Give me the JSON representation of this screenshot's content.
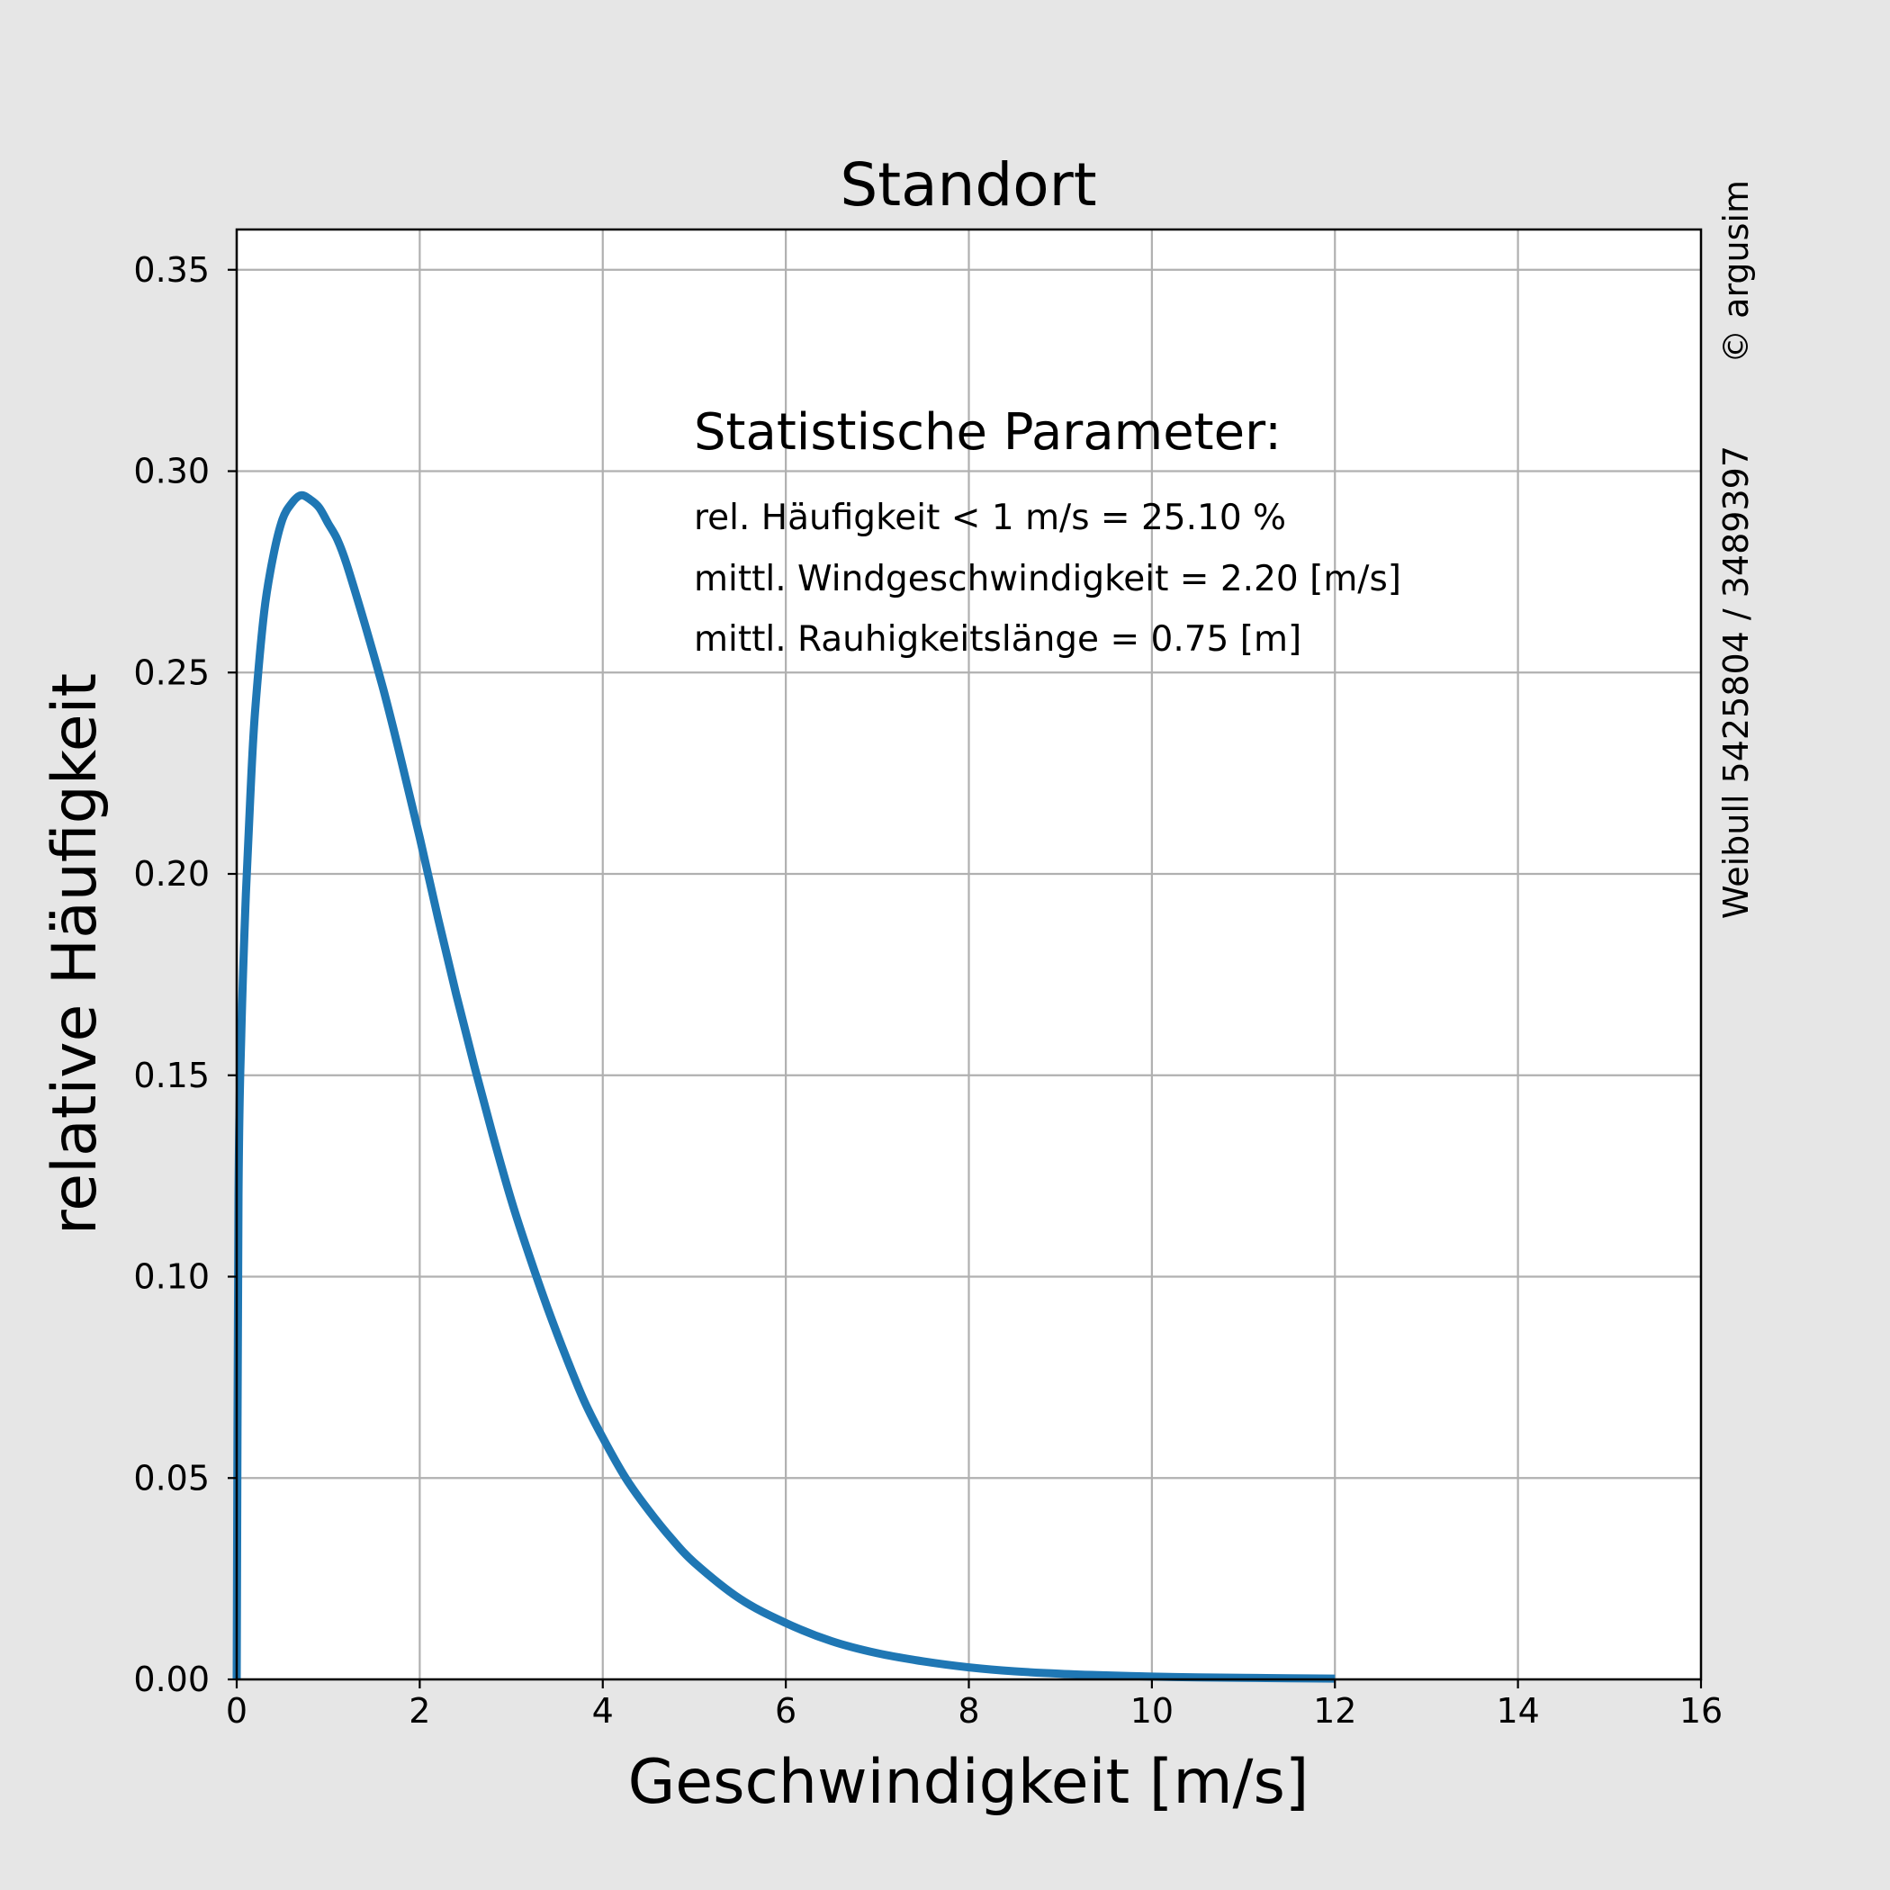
{
  "colors": {
    "background": "#e6e6e6",
    "plot_background": "#ffffff",
    "curve": "#1f77b4",
    "grid": "#b0b0b0"
  },
  "side_text": {
    "copyright": "© argusim",
    "weibull_info": "Weibull 5425804 / 3489397"
  },
  "annotation": {
    "heading": "Statistische Parameter:",
    "lines": [
      "rel. Häufigkeit < 1 m/s = 25.10 %",
      "mittl. Windgeschwindigkeit = 2.20 [m/s]",
      "mittl. Rauhigkeitslänge = 0.75 [m]"
    ]
  },
  "chart_data": {
    "type": "line",
    "title": "Standort",
    "xlabel": "Geschwindigkeit [m/s]",
    "ylabel": "relative Häufigkeit",
    "xlim": [
      0,
      16
    ],
    "ylim": [
      0,
      0.36
    ],
    "xticks": [
      0,
      2,
      4,
      6,
      8,
      10,
      12,
      14,
      16
    ],
    "xtick_labels": [
      "0",
      "2",
      "4",
      "6",
      "8",
      "10",
      "12",
      "14",
      "16"
    ],
    "yticks": [
      0,
      0.05,
      0.1,
      0.15,
      0.2,
      0.25,
      0.3,
      0.35
    ],
    "ytick_labels": [
      "0.00",
      "0.05",
      "0.10",
      "0.15",
      "0.20",
      "0.25",
      "0.30",
      "0.35"
    ],
    "grid": true,
    "series": [
      {
        "x": [
          0,
          0.02,
          0.05,
          0.1,
          0.15,
          0.2,
          0.3,
          0.4,
          0.5,
          0.6,
          0.7,
          0.8,
          0.9,
          1.0,
          1.1,
          1.2,
          1.4,
          1.6,
          1.8,
          2.0,
          2.2,
          2.4,
          2.6,
          2.8,
          3.0,
          3.2,
          3.4,
          3.6,
          3.8,
          4.0,
          4.25,
          4.5,
          4.75,
          5.0,
          5.5,
          6.0,
          6.5,
          7.0,
          7.5,
          8.0,
          8.5,
          9.0,
          9.5,
          10.0,
          10.5,
          11.0,
          11.5,
          12.0
        ],
        "y": [
          0,
          0.12,
          0.16,
          0.195,
          0.22,
          0.24,
          0.265,
          0.279,
          0.288,
          0.292,
          0.294,
          0.293,
          0.291,
          0.287,
          0.283,
          0.277,
          0.262,
          0.246,
          0.228,
          0.209,
          0.189,
          0.17,
          0.152,
          0.135,
          0.119,
          0.105,
          0.092,
          0.08,
          0.069,
          0.06,
          0.05,
          0.042,
          0.035,
          0.029,
          0.02,
          0.014,
          0.0095,
          0.0065,
          0.0045,
          0.003,
          0.002,
          0.0014,
          0.001,
          0.0007,
          0.0005,
          0.0004,
          0.0003,
          0.0002
        ]
      }
    ]
  }
}
